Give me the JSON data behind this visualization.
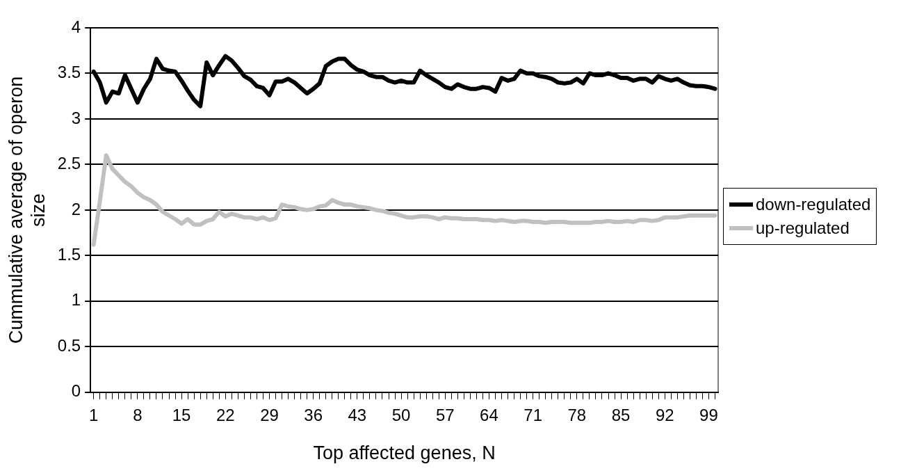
{
  "chart_data": {
    "type": "line",
    "xlabel": "Top affected genes, N",
    "ylabel": "Cummulative average of operon size",
    "categories": [
      "1",
      null,
      null,
      null,
      null,
      null,
      null,
      "8",
      null,
      null,
      null,
      null,
      null,
      null,
      "15",
      null,
      null,
      null,
      null,
      null,
      null,
      "22",
      null,
      null,
      null,
      null,
      null,
      null,
      "29",
      null,
      null,
      null,
      null,
      null,
      null,
      "36",
      null,
      null,
      null,
      null,
      null,
      null,
      "43",
      null,
      null,
      null,
      null,
      null,
      null,
      "50",
      null,
      null,
      null,
      null,
      null,
      null,
      "57",
      null,
      null,
      null,
      null,
      null,
      null,
      "64",
      null,
      null,
      null,
      null,
      null,
      null,
      "71",
      null,
      null,
      null,
      null,
      null,
      null,
      "78",
      null,
      null,
      null,
      null,
      null,
      null,
      "85",
      null,
      null,
      null,
      null,
      null,
      null,
      "92",
      null,
      null,
      null,
      null,
      null,
      null,
      "99",
      null
    ],
    "series": [
      {
        "name": "down-regulated",
        "color": "#000000",
        "values": [
          3.52,
          3.4,
          3.18,
          3.3,
          3.28,
          3.48,
          3.33,
          3.18,
          3.33,
          3.44,
          3.66,
          3.55,
          3.53,
          3.52,
          3.42,
          3.31,
          3.21,
          3.14,
          3.62,
          3.48,
          3.59,
          3.69,
          3.64,
          3.56,
          3.47,
          3.43,
          3.36,
          3.34,
          3.26,
          3.41,
          3.41,
          3.44,
          3.4,
          3.34,
          3.28,
          3.33,
          3.39,
          3.58,
          3.63,
          3.66,
          3.66,
          3.59,
          3.54,
          3.52,
          3.48,
          3.46,
          3.46,
          3.42,
          3.4,
          3.42,
          3.4,
          3.4,
          3.53,
          3.48,
          3.44,
          3.4,
          3.35,
          3.33,
          3.38,
          3.35,
          3.33,
          3.33,
          3.35,
          3.34,
          3.3,
          3.45,
          3.42,
          3.44,
          3.53,
          3.5,
          3.5,
          3.47,
          3.46,
          3.44,
          3.4,
          3.39,
          3.4,
          3.44,
          3.39,
          3.5,
          3.48,
          3.48,
          3.5,
          3.48,
          3.45,
          3.45,
          3.42,
          3.44,
          3.44,
          3.4,
          3.47,
          3.44,
          3.42,
          3.44,
          3.4,
          3.37,
          3.36,
          3.36,
          3.35,
          3.33
        ]
      },
      {
        "name": "up-regulated",
        "color": "#c0c0c0",
        "values": [
          1.62,
          2.1,
          2.6,
          2.45,
          2.38,
          2.31,
          2.26,
          2.19,
          2.14,
          2.11,
          2.06,
          1.98,
          1.94,
          1.9,
          1.85,
          1.9,
          1.84,
          1.84,
          1.88,
          1.9,
          1.98,
          1.93,
          1.96,
          1.94,
          1.92,
          1.92,
          1.9,
          1.92,
          1.89,
          1.91,
          2.06,
          2.04,
          2.03,
          2.01,
          2.0,
          2.01,
          2.04,
          2.05,
          2.11,
          2.08,
          2.06,
          2.06,
          2.04,
          2.03,
          2.02,
          2.0,
          1.99,
          1.97,
          1.96,
          1.94,
          1.92,
          1.92,
          1.93,
          1.93,
          1.92,
          1.9,
          1.92,
          1.91,
          1.91,
          1.9,
          1.9,
          1.9,
          1.89,
          1.89,
          1.88,
          1.89,
          1.88,
          1.87,
          1.88,
          1.88,
          1.87,
          1.87,
          1.86,
          1.87,
          1.87,
          1.87,
          1.86,
          1.86,
          1.86,
          1.86,
          1.87,
          1.87,
          1.88,
          1.87,
          1.87,
          1.88,
          1.87,
          1.89,
          1.89,
          1.88,
          1.89,
          1.92,
          1.92,
          1.92,
          1.93,
          1.94,
          1.94,
          1.94,
          1.94,
          1.94
        ]
      }
    ],
    "ylim": [
      0,
      4
    ],
    "yticks": [
      0,
      0.5,
      1,
      1.5,
      2,
      2.5,
      3,
      3.5,
      4
    ],
    "grid": "y",
    "legend": "right",
    "marker": "none",
    "line_style": "solid"
  }
}
